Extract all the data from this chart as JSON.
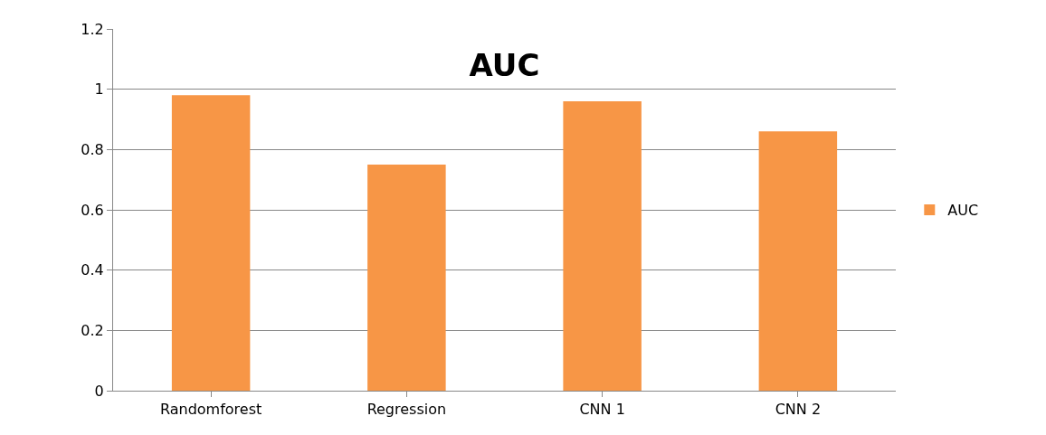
{
  "chart_data": {
    "type": "bar",
    "title": "AUC",
    "categories": [
      "Randomforest",
      "Regression",
      "CNN 1",
      "CNN 2"
    ],
    "series": [
      {
        "name": "AUC",
        "color": "#f79646",
        "values": [
          0.98,
          0.75,
          0.96,
          0.86
        ]
      }
    ],
    "ylim": [
      0,
      1.2
    ],
    "yticks": [
      0,
      0.2,
      0.4,
      0.6,
      0.8,
      1,
      1.2
    ],
    "grid": "y",
    "legend": "right"
  }
}
